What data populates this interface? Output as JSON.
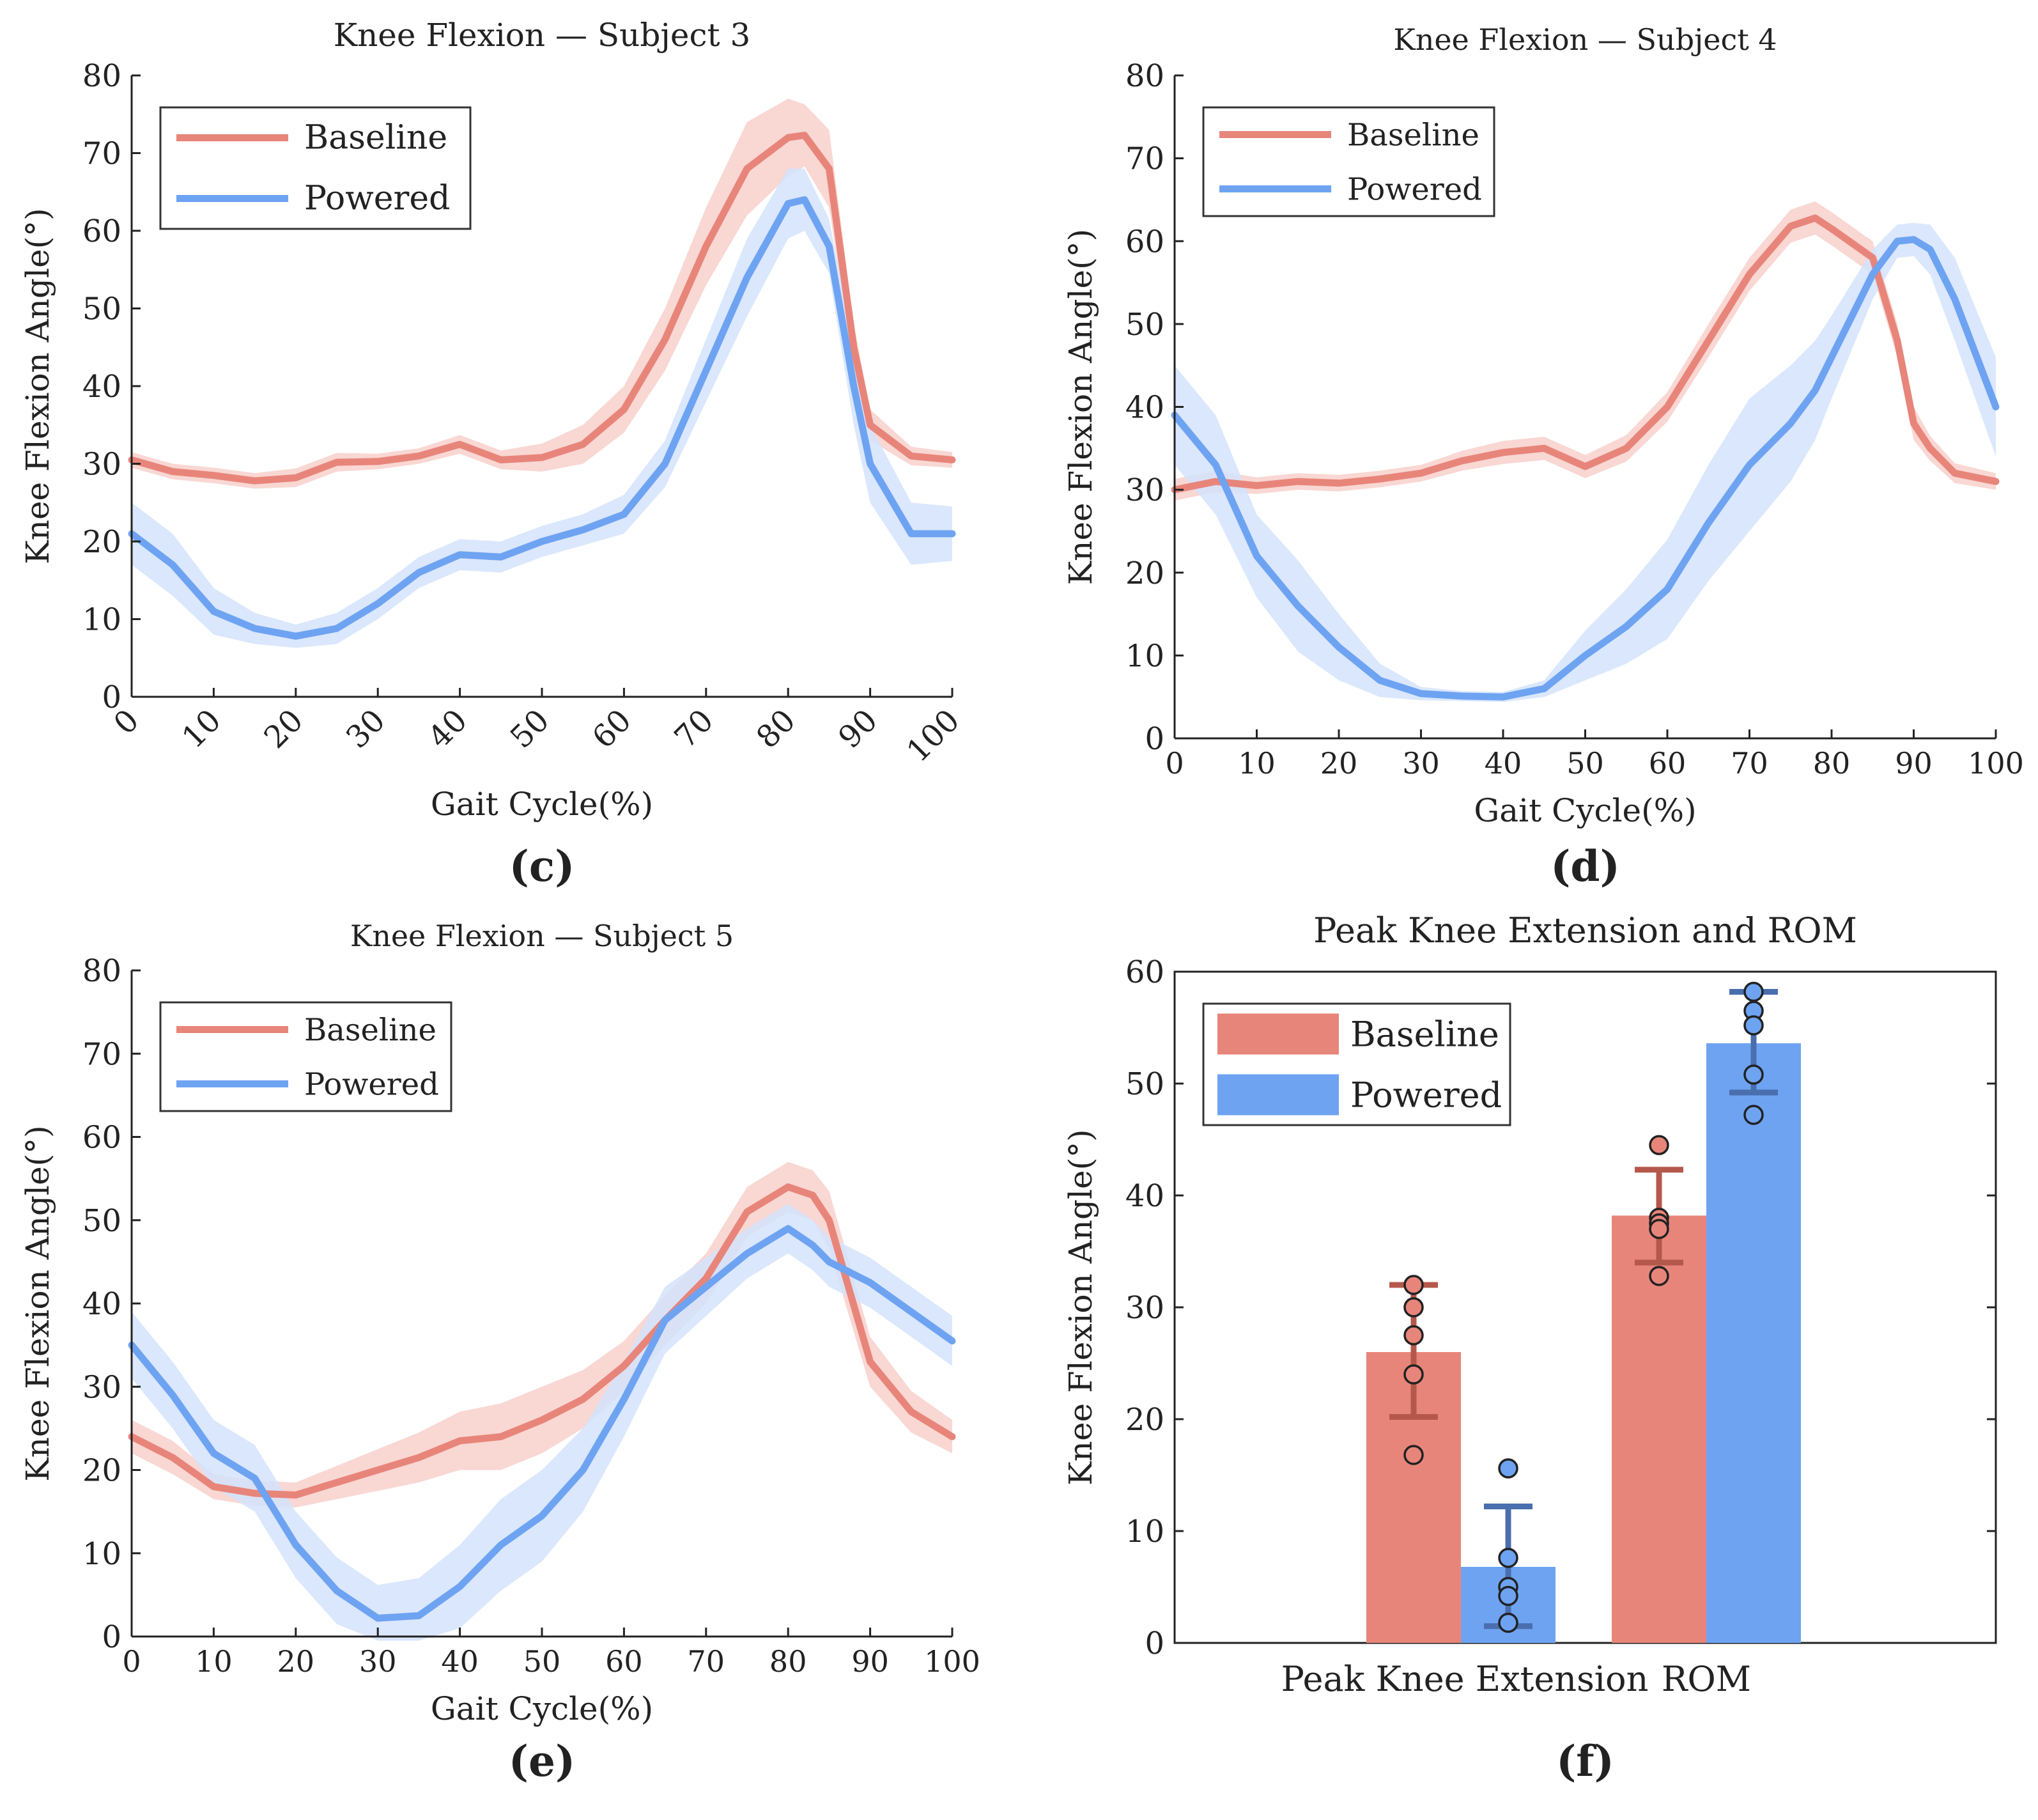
{
  "figure": {
    "colors": {
      "baseline": "#E8857A",
      "powered": "#6EA3F2",
      "baseline_band": "#F8D0CB",
      "powered_band": "#D3E3FB",
      "baseline_err": "#B5584C",
      "powered_err": "#4A6FAE"
    }
  },
  "chart_data": [
    {
      "id": "c",
      "type": "line",
      "panel_label": "(c)",
      "title": "Knee Flexion — Subject 3",
      "xlabel": "Gait Cycle(%)",
      "ylabel": "Knee Flexion Angle(°)",
      "xlim": [
        0,
        100
      ],
      "ylim": [
        0,
        80
      ],
      "xticks": [
        0,
        10,
        20,
        30,
        40,
        50,
        60,
        70,
        80,
        90,
        100
      ],
      "yticks": [
        0,
        10,
        20,
        30,
        40,
        50,
        60,
        70,
        80
      ],
      "xtick_rotation": -45,
      "legend": {
        "position": "top-left",
        "entries": [
          "Baseline",
          "Powered"
        ]
      },
      "x": [
        0,
        5,
        10,
        15,
        20,
        25,
        30,
        35,
        40,
        45,
        50,
        55,
        60,
        65,
        70,
        75,
        80,
        82,
        85,
        88,
        90,
        95,
        100
      ],
      "series": [
        {
          "name": "Baseline",
          "values": [
            30.5,
            29,
            28.5,
            27.8,
            28.2,
            30.2,
            30.3,
            31,
            32.5,
            30.5,
            30.8,
            32.5,
            37,
            46,
            58,
            68,
            72,
            72.3,
            68,
            45,
            35,
            31,
            30.5
          ],
          "band": [
            1.0,
            1.0,
            1.0,
            1.0,
            1.2,
            1.2,
            1.0,
            1.0,
            1.2,
            1.2,
            1.8,
            2.5,
            3,
            4,
            5,
            6,
            5,
            4,
            5,
            3,
            2,
            1.2,
            1.0
          ]
        },
        {
          "name": "Powered",
          "values": [
            21,
            17,
            11,
            8.8,
            7.8,
            8.8,
            12,
            16,
            18.3,
            18,
            20,
            21.5,
            23.5,
            30,
            42,
            54,
            63.5,
            64,
            58,
            40,
            30,
            21,
            21
          ],
          "band": [
            4,
            4,
            3,
            2,
            1.5,
            2,
            2,
            2,
            2,
            2,
            2,
            2,
            2.5,
            3,
            4,
            5,
            4.5,
            4,
            3.5,
            5,
            5,
            4,
            3.5
          ]
        }
      ]
    },
    {
      "id": "d",
      "type": "line",
      "panel_label": "(d)",
      "title": "Knee Flexion — Subject 4",
      "xlabel": "Gait Cycle(%)",
      "ylabel": "Knee Flexion Angle(°)",
      "xlim": [
        0,
        100
      ],
      "ylim": [
        0,
        80
      ],
      "xticks": [
        0,
        10,
        20,
        30,
        40,
        50,
        60,
        70,
        80,
        90,
        100
      ],
      "yticks": [
        0,
        10,
        20,
        30,
        40,
        50,
        60,
        70,
        80
      ],
      "xtick_rotation": 0,
      "legend": {
        "position": "top-left",
        "entries": [
          "Baseline",
          "Powered"
        ]
      },
      "x": [
        0,
        5,
        10,
        15,
        20,
        25,
        30,
        35,
        40,
        45,
        50,
        55,
        60,
        65,
        70,
        75,
        78,
        80,
        85,
        88,
        90,
        92,
        95,
        100
      ],
      "series": [
        {
          "name": "Baseline",
          "values": [
            30,
            31,
            30.5,
            31,
            30.8,
            31.3,
            32,
            33.5,
            34.5,
            35,
            32.8,
            35,
            40,
            48,
            56,
            61.8,
            62.8,
            61.5,
            58,
            48,
            38,
            35,
            32,
            31
          ],
          "band": [
            1.3,
            1.3,
            1.0,
            1.0,
            1.0,
            1.0,
            1.0,
            1.2,
            1.4,
            1.4,
            1.4,
            1.6,
            1.8,
            2,
            2,
            2,
            2,
            2,
            2,
            2,
            2,
            1.5,
            1.2,
            1.0
          ]
        },
        {
          "name": "Powered",
          "values": [
            39,
            33,
            22,
            16,
            11,
            7,
            5.4,
            5.1,
            5,
            6,
            10,
            13.5,
            18,
            26,
            33,
            38,
            42,
            46,
            56,
            60,
            60.2,
            59,
            53,
            40
          ],
          "band": [
            6,
            6,
            5,
            5.5,
            4,
            2,
            0.8,
            0.6,
            0.6,
            1,
            3,
            4.5,
            6,
            7,
            8,
            7,
            6,
            5,
            3,
            2,
            2,
            3,
            5,
            6
          ]
        }
      ]
    },
    {
      "id": "e",
      "type": "line",
      "panel_label": "(e)",
      "title": "Knee Flexion — Subject 5",
      "xlabel": "Gait Cycle(%)",
      "ylabel": "Knee Flexion Angle(°)",
      "xlim": [
        0,
        100
      ],
      "ylim": [
        0,
        80
      ],
      "xticks": [
        0,
        10,
        20,
        30,
        40,
        50,
        60,
        70,
        80,
        90,
        100
      ],
      "yticks": [
        0,
        10,
        20,
        30,
        40,
        50,
        60,
        70,
        80
      ],
      "xtick_rotation": 0,
      "legend": {
        "position": "top-left",
        "entries": [
          "Baseline",
          "Powered"
        ]
      },
      "x": [
        0,
        5,
        10,
        15,
        20,
        25,
        30,
        35,
        40,
        45,
        50,
        55,
        60,
        65,
        70,
        75,
        80,
        83,
        85,
        90,
        95,
        100
      ],
      "series": [
        {
          "name": "Baseline",
          "values": [
            24,
            21.5,
            18,
            17.2,
            17,
            18.5,
            20,
            21.5,
            23.5,
            24,
            26,
            28.5,
            32.5,
            38,
            43,
            51,
            54,
            53,
            50,
            33,
            27,
            24
          ],
          "band": [
            2,
            2,
            1.5,
            1.5,
            1.5,
            2,
            2.5,
            3,
            3.5,
            4,
            4,
            3.5,
            3,
            3,
            3,
            3,
            3,
            3,
            3.5,
            3,
            2.5,
            2
          ]
        },
        {
          "name": "Powered",
          "values": [
            35,
            29,
            22,
            19,
            11,
            5.5,
            2.2,
            2.5,
            6,
            11,
            14.5,
            20,
            28.5,
            38,
            42,
            46,
            49,
            47,
            45,
            42.5,
            39,
            35.5
          ],
          "band": [
            4,
            4,
            4,
            4,
            4,
            4,
            4,
            4.5,
            5,
            5.5,
            5.5,
            5,
            4.5,
            4,
            3.5,
            3,
            3,
            3,
            3,
            3,
            3,
            3
          ]
        }
      ]
    },
    {
      "id": "f",
      "type": "bar",
      "panel_label": "(f)",
      "title": "Peak Knee Extension and ROM",
      "xlabel": "",
      "ylabel": "Knee Flexion Angle(°)",
      "ylim": [
        0,
        60
      ],
      "yticks": [
        0,
        10,
        20,
        30,
        40,
        50,
        60
      ],
      "categories": [
        "Peak Knee Extension",
        "ROM"
      ],
      "legend": {
        "position": "top-left",
        "entries": [
          "Baseline",
          "Powered"
        ]
      },
      "series": [
        {
          "name": "Baseline",
          "values": [
            26,
            38.2
          ],
          "error": [
            [
              20.2,
              32
            ],
            [
              34,
              42.3
            ]
          ],
          "points": [
            [
              32,
              30,
              27.5,
              24,
              16.8
            ],
            [
              44.5,
              38,
              37.5,
              37,
              32.8
            ]
          ]
        },
        {
          "name": "Powered",
          "values": [
            6.8,
            53.6
          ],
          "error": [
            [
              1.5,
              12.2
            ],
            [
              49.2,
              58.2
            ]
          ],
          "points": [
            [
              15.6,
              7.6,
              5,
              4.2,
              1.8
            ],
            [
              58.2,
              56.5,
              55.2,
              50.8,
              47.2
            ]
          ]
        }
      ]
    }
  ]
}
